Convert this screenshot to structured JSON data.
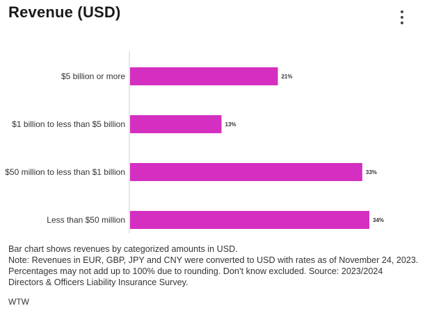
{
  "header": {
    "title": "Revenue (USD)"
  },
  "menu": {
    "icon": "more-vertical-icon"
  },
  "colors": {
    "bar": "#d42fc0",
    "axis": "#cccccc"
  },
  "chart_data": {
    "type": "bar",
    "orientation": "horizontal",
    "categories": [
      "$5 billion or more",
      "$1 billion to less than $5 billion",
      "$50 million to less than $1 billion",
      "Less than $50 million"
    ],
    "values": [
      21,
      13,
      33,
      34
    ],
    "value_labels": [
      "21%",
      "13%",
      "33%",
      "34%"
    ],
    "xlim": [
      0,
      34
    ],
    "grid": false,
    "legend": "none"
  },
  "footer": {
    "description": "Bar chart shows revenues by categorized amounts in USD.",
    "note": "Note: Revenues in EUR, GBP, JPY and CNY were converted to USD with rates as of November 24, 2023. Percentages may not add up to 100% due to rounding. Don’t know excluded. Source: 2023/2024 Directors & Officers Liability Insurance Survey.",
    "source": "WTW"
  }
}
